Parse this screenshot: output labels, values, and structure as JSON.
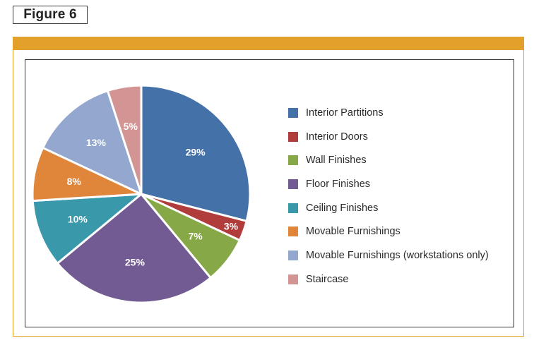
{
  "figure_label": "Figure 6",
  "chart_data": {
    "type": "pie",
    "title": "",
    "categories": [
      "Interior Partitions",
      "Interior Doors",
      "Wall Finishes",
      "Floor Finishes",
      "Ceiling Finishes",
      "Movable Furnishings",
      "Movable Furnishings (workstations only)",
      "Staircase"
    ],
    "values": [
      29,
      3,
      7,
      25,
      10,
      8,
      13,
      5
    ],
    "data_labels": [
      "29%",
      "3%",
      "7%",
      "25%",
      "10%",
      "8%",
      "13%",
      "5%"
    ],
    "colors": [
      "#4472a8",
      "#b03c3c",
      "#86a847",
      "#725a92",
      "#3a98ab",
      "#e0863a",
      "#93a7cf",
      "#d39494"
    ],
    "legend_position": "right",
    "start_angle": "12 o'clock, clockwise"
  }
}
